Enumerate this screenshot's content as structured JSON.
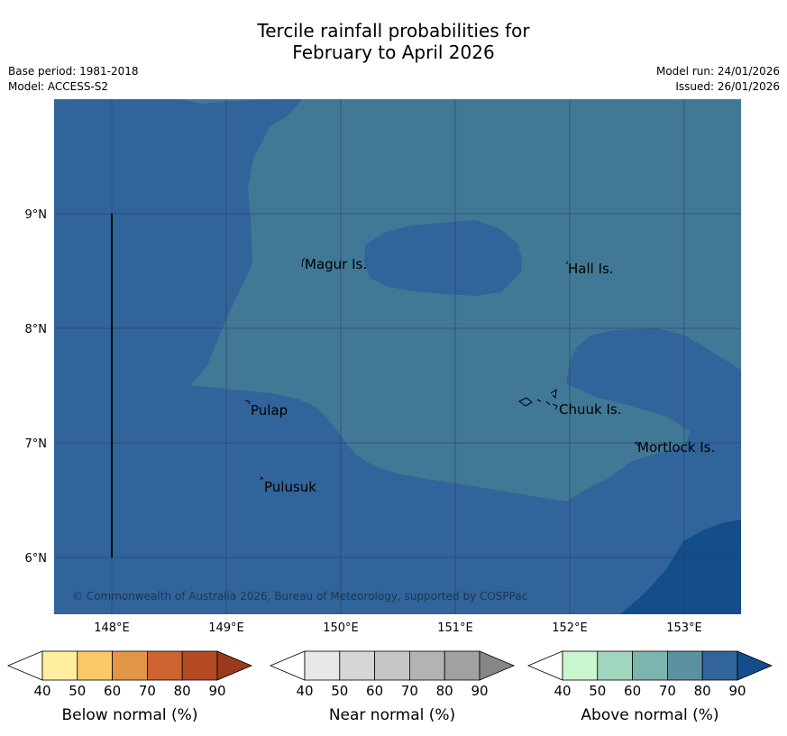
{
  "title_line1": "Tercile rainfall probabilities for",
  "title_line2": "February to April 2026",
  "base_period": "Base period: 1981-2018",
  "model": "Model: ACCESS-S2",
  "model_run": "Model run: 24/01/2026",
  "issued": "Issued: 26/01/2026",
  "copyright": "© Commonwealth of Australia 2026, Bureau of Meteorology, supported by COSPPac",
  "lon_labels": [
    "148°E",
    "149°E",
    "150°E",
    "151°E",
    "152°E",
    "153°E"
  ],
  "lat_labels": [
    "9°N",
    "8°N",
    "7°N",
    "6°N"
  ],
  "places": [
    "Magur Is.",
    "Hall Is.",
    "Pulap",
    "Chuuk Is.",
    "Mortlock Is.",
    "Pulusuk"
  ],
  "colors": {
    "above_80": "#31649a",
    "above_70": "#417895",
    "above_90": "#134d8a",
    "grid": "#1f3f5f"
  },
  "legends": {
    "below": {
      "title": "Below normal (%)",
      "ticks": [
        "40",
        "50",
        "60",
        "70",
        "80",
        "90"
      ],
      "colors": [
        "#ffeea0",
        "#fdc966",
        "#e29546",
        "#cc6330",
        "#b34a24",
        "#9a3a1c"
      ]
    },
    "near": {
      "title": "Near normal (%)",
      "ticks": [
        "40",
        "50",
        "60",
        "70",
        "80",
        "90"
      ],
      "colors": [
        "#e8e8e8",
        "#d6d6d6",
        "#c6c6c6",
        "#b3b3b3",
        "#a1a1a1",
        "#868686"
      ]
    },
    "above": {
      "title": "Above normal (%)",
      "ticks": [
        "40",
        "50",
        "60",
        "70",
        "80",
        "90"
      ],
      "colors": [
        "#c9f5cf",
        "#a0d6bd",
        "#7cb5ae",
        "#5a92a2",
        "#31649a",
        "#134d8a"
      ]
    }
  }
}
